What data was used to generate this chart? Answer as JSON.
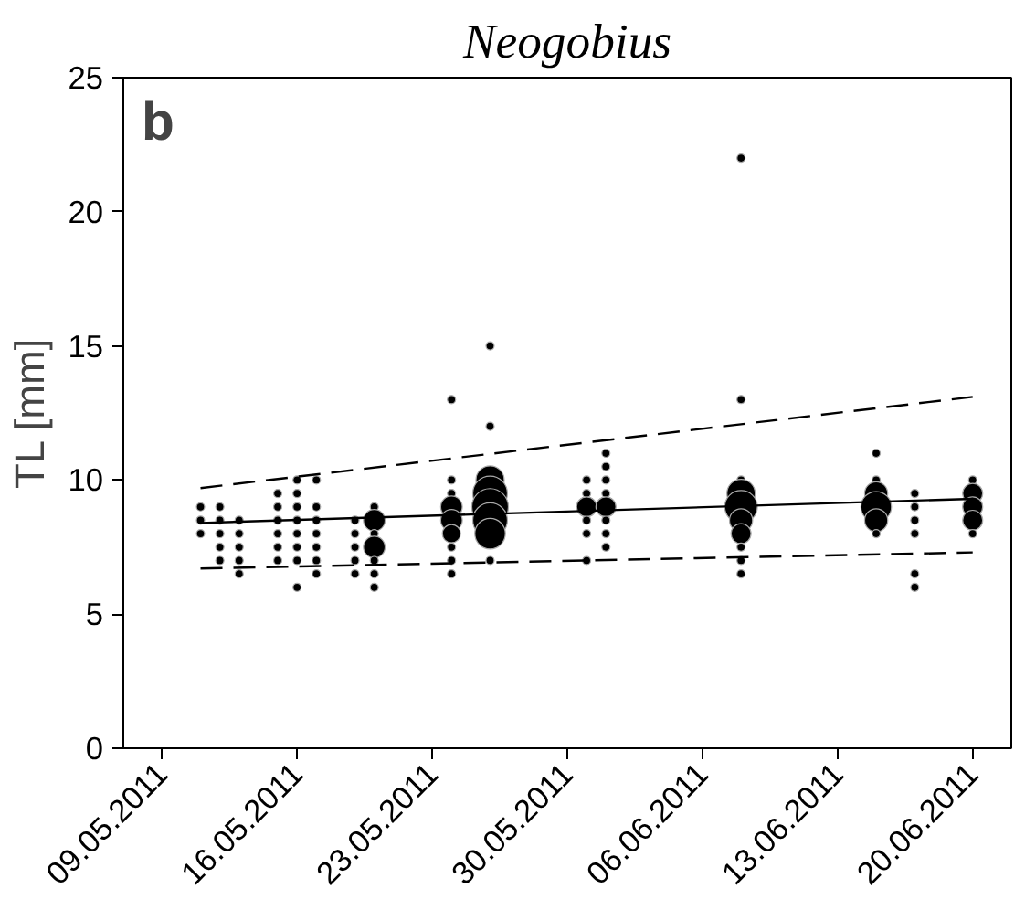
{
  "chart_data": {
    "type": "bubble",
    "title": "Neogobius",
    "ylabel": "TL [mm]",
    "annotations": [
      "b"
    ],
    "xlim": [
      "2011-05-07",
      "2011-06-22"
    ],
    "xticks": [
      {
        "value": "2011-05-09",
        "label": "09.05.2011"
      },
      {
        "value": "2011-05-16",
        "label": "16.05.2011"
      },
      {
        "value": "2011-05-23",
        "label": "23.05.2011"
      },
      {
        "value": "2011-05-30",
        "label": "30.05.2011"
      },
      {
        "value": "2011-06-06",
        "label": "06.06.2011"
      },
      {
        "value": "2011-06-13",
        "label": "13.06.2011"
      },
      {
        "value": "2011-06-20",
        "label": "20.06.2011"
      }
    ],
    "ylim": [
      0,
      25
    ],
    "yticks": [
      0,
      5,
      10,
      15,
      20,
      25
    ],
    "series": [
      {
        "color": "#000000",
        "marker": "circle",
        "x": [
          "2011-05-11",
          "2011-05-11",
          "2011-05-11",
          "2011-05-12",
          "2011-05-12",
          "2011-05-12",
          "2011-05-12",
          "2011-05-12",
          "2011-05-13",
          "2011-05-13",
          "2011-05-13",
          "2011-05-13",
          "2011-05-13",
          "2011-05-15",
          "2011-05-15",
          "2011-05-15",
          "2011-05-15",
          "2011-05-15",
          "2011-05-15",
          "2011-05-16",
          "2011-05-16",
          "2011-05-16",
          "2011-05-16",
          "2011-05-16",
          "2011-05-16",
          "2011-05-16",
          "2011-05-16",
          "2011-05-17",
          "2011-05-17",
          "2011-05-17",
          "2011-05-17",
          "2011-05-17",
          "2011-05-17",
          "2011-05-17",
          "2011-05-19",
          "2011-05-19",
          "2011-05-19",
          "2011-05-19",
          "2011-05-19",
          "2011-05-20",
          "2011-05-20",
          "2011-05-20",
          "2011-05-20",
          "2011-05-20",
          "2011-05-20",
          "2011-05-20",
          "2011-05-24",
          "2011-05-24",
          "2011-05-24",
          "2011-05-24",
          "2011-05-24",
          "2011-05-24",
          "2011-05-24",
          "2011-05-24",
          "2011-05-24",
          "2011-05-26",
          "2011-05-26",
          "2011-05-26",
          "2011-05-26",
          "2011-05-26",
          "2011-05-26",
          "2011-05-26",
          "2011-05-26",
          "2011-05-31",
          "2011-05-31",
          "2011-05-31",
          "2011-05-31",
          "2011-05-31",
          "2011-05-31",
          "2011-06-01",
          "2011-06-01",
          "2011-06-01",
          "2011-06-01",
          "2011-06-01",
          "2011-06-01",
          "2011-06-01",
          "2011-06-01",
          "2011-06-08",
          "2011-06-08",
          "2011-06-08",
          "2011-06-08",
          "2011-06-08",
          "2011-06-08",
          "2011-06-08",
          "2011-06-08",
          "2011-06-08",
          "2011-06-08",
          "2011-06-15",
          "2011-06-15",
          "2011-06-15",
          "2011-06-15",
          "2011-06-15",
          "2011-06-15",
          "2011-06-17",
          "2011-06-17",
          "2011-06-17",
          "2011-06-17",
          "2011-06-17",
          "2011-06-17",
          "2011-06-20",
          "2011-06-20",
          "2011-06-20",
          "2011-06-20",
          "2011-06-20"
        ],
        "values": [
          9,
          8.5,
          8,
          9,
          8.5,
          8,
          7.5,
          7,
          8.5,
          8,
          7.5,
          7,
          6.5,
          9.5,
          9,
          8.5,
          8,
          7.5,
          7,
          10,
          9.5,
          9,
          8.5,
          8,
          7.5,
          7,
          6,
          10,
          9,
          8.5,
          8,
          7.5,
          7,
          6.5,
          8.5,
          8,
          7.5,
          7,
          6.5,
          9,
          8.5,
          8,
          7.5,
          7,
          6.5,
          6,
          13,
          10,
          9.5,
          9,
          8.5,
          8,
          7.5,
          7,
          6.5,
          15,
          12,
          10,
          9.5,
          9,
          8.5,
          8,
          7,
          10,
          9.5,
          9,
          8.5,
          8,
          7,
          11,
          10.5,
          10,
          9.5,
          9,
          8.5,
          8,
          7.5,
          22,
          13,
          10,
          9.5,
          9,
          8.5,
          8,
          7.5,
          7,
          6.5,
          11,
          10,
          9.5,
          9,
          8.5,
          8,
          9.5,
          9,
          8.5,
          8,
          6.5,
          6,
          10,
          9.5,
          9,
          8.5,
          8
        ],
        "sizes": [
          0.05,
          0.05,
          0.05,
          0.05,
          0.05,
          0.05,
          0.05,
          0.05,
          0.05,
          0.05,
          0.05,
          0.05,
          0.05,
          0.05,
          0.05,
          0.05,
          0.05,
          0.05,
          0.05,
          0.05,
          0.05,
          0.05,
          0.05,
          0.05,
          0.05,
          0.05,
          0.05,
          0.05,
          0.05,
          0.05,
          0.05,
          0.05,
          0.05,
          0.05,
          0.05,
          0.05,
          0.05,
          0.05,
          0.05,
          0.05,
          0.35,
          0.05,
          0.35,
          0.05,
          0.05,
          0.05,
          0.05,
          0.05,
          0.05,
          0.35,
          0.35,
          0.25,
          0.05,
          0.05,
          0.05,
          0.05,
          0.05,
          0.6,
          0.9,
          1,
          0.9,
          0.7,
          0.05,
          0.05,
          0.05,
          0.3,
          0.05,
          0.05,
          0.05,
          0.05,
          0.05,
          0.05,
          0.05,
          0.3,
          0.05,
          0.05,
          0.05,
          0.05,
          0.05,
          0.05,
          0.6,
          0.8,
          0.4,
          0.3,
          0.05,
          0.05,
          0.05,
          0.05,
          0.05,
          0.4,
          0.7,
          0.4,
          0.05,
          0.05,
          0.05,
          0.05,
          0.05,
          0.05,
          0.05,
          0.05,
          0.3,
          0.3,
          0.3,
          0.05
        ]
      },
      {
        "type": "line",
        "color": "#000000",
        "line_style": "solid",
        "x": [
          "2011-05-11",
          "2011-06-20"
        ],
        "values": [
          8.4,
          9.3
        ]
      },
      {
        "type": "line",
        "color": "#000000",
        "line_style": "dashed",
        "x": [
          "2011-05-11",
          "2011-06-20"
        ],
        "values": [
          9.7,
          13.1
        ]
      },
      {
        "type": "line",
        "color": "#000000",
        "line_style": "dashed",
        "x": [
          "2011-05-11",
          "2011-06-20"
        ],
        "values": [
          6.7,
          7.3
        ]
      }
    ]
  }
}
